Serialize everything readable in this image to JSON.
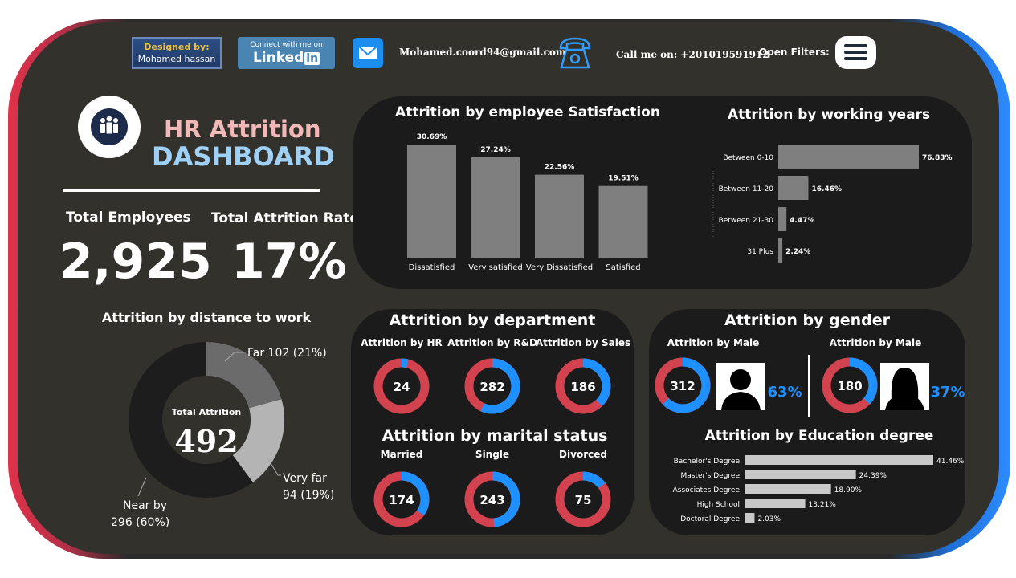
{
  "header": {
    "designed_by_line1": "Designed by:",
    "designed_by_line2": "Mohamed hassan",
    "linkedin_line1": "Connect with me on",
    "linkedin_word": "Linked",
    "linkedin_in": "in",
    "email": "Mohamed.coord94@gmail.com",
    "phone": "Call me on: +201019591912",
    "open_filters": "Open Filters:",
    "icons": [
      "mail-icon",
      "telephone-icon",
      "hamburger-menu-icon"
    ]
  },
  "title": {
    "line1": "HR Attrition",
    "line2": "DASHBOARD",
    "line1_color": "#f1b8b8",
    "line2_color": "#9fd0f5",
    "logo_icon": "people-group-icon"
  },
  "kpis": {
    "total_employees_label": "Total Employees",
    "total_employees_value": "2,925",
    "attrition_rate_label": "Total Attrition Rate",
    "attrition_rate_value": "17%"
  },
  "colors": {
    "red": "#d2424f",
    "blue": "#1e90ff",
    "bar_gray": "#7f7f7f",
    "bar_light": "#c8c8c8",
    "panel": "#1b1b1b",
    "background": "#33312c"
  },
  "chart_data": [
    {
      "id": "satisfaction",
      "type": "bar",
      "title": "Attrition by employee Satisfaction",
      "categories": [
        "Dissatisfied",
        "Very satisfied",
        "Very Dissatisfied",
        "Satisfied"
      ],
      "values": [
        30.69,
        27.24,
        22.56,
        19.51
      ],
      "labels": [
        "30.69%",
        "27.24%",
        "22.56%",
        "19.51%"
      ]
    },
    {
      "id": "working_years",
      "type": "bar",
      "orientation": "horizontal",
      "title": "Attrition by working years",
      "categories": [
        "Between 0-10",
        "Between 11-20",
        "Between 21-30",
        "31 Plus"
      ],
      "values": [
        76.83,
        16.46,
        4.47,
        2.24
      ],
      "labels": [
        "76.83%",
        "16.46%",
        "4.47%",
        "2.24%"
      ]
    },
    {
      "id": "distance",
      "type": "pie",
      "title": "Attrition by distance to work",
      "center_label": "Total Attrition",
      "center_value": "492",
      "slices": [
        {
          "name": "Far",
          "value": 102,
          "label_line1": "Far 102 (21%)",
          "label_line2": "",
          "color": "#6b6b6b"
        },
        {
          "name": "Very far",
          "value": 94,
          "label_line1": "Very far",
          "label_line2": "94 (19%)",
          "color": "#b4b4b4"
        },
        {
          "name": "Near by",
          "value": 296,
          "label_line1": "Near by",
          "label_line2": "296 (60%)",
          "color": "#1d1d1d"
        }
      ]
    },
    {
      "id": "department",
      "type": "pie",
      "title": "Attrition by department",
      "items": [
        {
          "label": "Attrition by HR",
          "value": "24",
          "blue_fraction": 0.04
        },
        {
          "label": "Attrition by R&D",
          "value": "282",
          "blue_fraction": 0.57
        },
        {
          "label": "Attrition by Sales",
          "value": "186",
          "blue_fraction": 0.38
        }
      ]
    },
    {
      "id": "marital",
      "type": "pie",
      "title": "Attrition by marital status",
      "items": [
        {
          "label": "Married",
          "value": "174",
          "blue_fraction": 0.35
        },
        {
          "label": "Single",
          "value": "243",
          "blue_fraction": 0.49
        },
        {
          "label": "Divorced",
          "value": "75",
          "blue_fraction": 0.15
        }
      ]
    },
    {
      "id": "gender",
      "type": "pie",
      "title": "Attrition by gender",
      "items": [
        {
          "label": "Attrition by Male",
          "value": "312",
          "percent": "63%",
          "blue_fraction": 0.63,
          "icon": "male-silhouette-icon"
        },
        {
          "label": "Attrition by Male",
          "value": "180",
          "percent": "37%",
          "blue_fraction": 0.37,
          "icon": "female-silhouette-icon"
        }
      ]
    },
    {
      "id": "education",
      "type": "bar",
      "orientation": "horizontal",
      "title": "Attrition by Education degree",
      "categories": [
        "Bachelor's Degree",
        "Master's Degree",
        "Associates Degree",
        "High School",
        "Doctoral Degree"
      ],
      "values": [
        41.46,
        24.39,
        18.9,
        13.21,
        2.03
      ],
      "labels": [
        "41.46%",
        "24.39%",
        "18.90%",
        "13.21%",
        "2.03%"
      ]
    }
  ]
}
